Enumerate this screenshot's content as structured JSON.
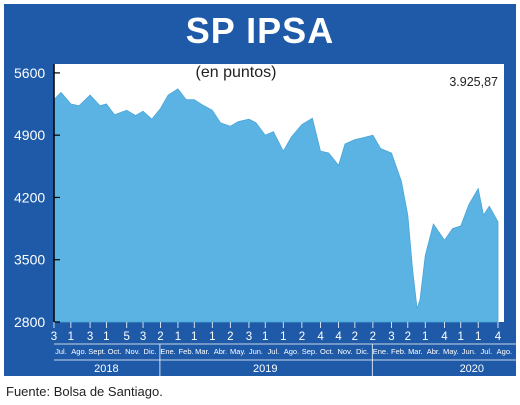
{
  "title": "SP IPSA",
  "source": "Fuente: Bolsa de Santiago.",
  "colors": {
    "frame": "#1e5aa8",
    "plot_bg": "#ffffff",
    "area": "#5ab3e2"
  },
  "chart_data": {
    "type": "area",
    "title": "SP IPSA",
    "subtitle": "(en puntos)",
    "last_value_label": "3.925,87",
    "ylim": [
      2800,
      5700
    ],
    "yticks": [
      2800,
      3500,
      4200,
      4900,
      5600
    ],
    "ytick_labels": [
      "2800",
      "3500",
      "4200",
      "4900",
      "5600"
    ],
    "grid": false,
    "x_start": "2018-07-03",
    "x_end": "2020-08-04",
    "x": [
      "2018-07-03",
      "2018-07-15",
      "2018-08-01",
      "2018-08-15",
      "2018-09-03",
      "2018-09-20",
      "2018-10-01",
      "2018-10-15",
      "2018-11-05",
      "2018-11-20",
      "2018-12-03",
      "2018-12-18",
      "2019-01-02",
      "2019-01-15",
      "2019-02-01",
      "2019-02-15",
      "2019-03-01",
      "2019-03-15",
      "2019-04-01",
      "2019-04-15",
      "2019-05-02",
      "2019-05-15",
      "2019-06-03",
      "2019-06-15",
      "2019-07-01",
      "2019-07-15",
      "2019-08-01",
      "2019-08-15",
      "2019-09-02",
      "2019-09-20",
      "2019-10-04",
      "2019-10-18",
      "2019-11-04",
      "2019-11-15",
      "2019-12-02",
      "2019-12-16",
      "2020-01-02",
      "2020-01-15",
      "2020-02-03",
      "2020-02-20",
      "2020-03-02",
      "2020-03-10",
      "2020-03-18",
      "2020-03-23",
      "2020-04-01",
      "2020-04-15",
      "2020-05-04",
      "2020-05-18",
      "2020-06-01",
      "2020-06-15",
      "2020-07-01",
      "2020-07-10",
      "2020-07-20",
      "2020-08-04"
    ],
    "y": [
      5300,
      5380,
      5250,
      5230,
      5350,
      5230,
      5250,
      5130,
      5180,
      5120,
      5170,
      5080,
      5200,
      5350,
      5420,
      5300,
      5300,
      5240,
      5180,
      5040,
      5000,
      5050,
      5080,
      5040,
      4900,
      4940,
      4720,
      4880,
      5020,
      5090,
      4720,
      4700,
      4560,
      4800,
      4850,
      4870,
      4900,
      4750,
      4700,
      4380,
      4000,
      3400,
      2950,
      3050,
      3550,
      3900,
      3720,
      3850,
      3880,
      4120,
      4300,
      4000,
      4100,
      3925.87
    ],
    "x_day_labels": [
      {
        "date": "2018-07-03",
        "label": "3"
      },
      {
        "date": "2018-08-01",
        "label": "1"
      },
      {
        "date": "2018-09-03",
        "label": "3"
      },
      {
        "date": "2018-10-01",
        "label": "1"
      },
      {
        "date": "2018-11-05",
        "label": "5"
      },
      {
        "date": "2018-12-03",
        "label": "3"
      },
      {
        "date": "2019-01-02",
        "label": "2"
      },
      {
        "date": "2019-02-01",
        "label": "1"
      },
      {
        "date": "2019-03-01",
        "label": "1"
      },
      {
        "date": "2019-04-01",
        "label": "1"
      },
      {
        "date": "2019-05-02",
        "label": "2"
      },
      {
        "date": "2019-06-03",
        "label": "3"
      },
      {
        "date": "2019-07-01",
        "label": "1"
      },
      {
        "date": "2019-08-01",
        "label": "1"
      },
      {
        "date": "2019-09-02",
        "label": "2"
      },
      {
        "date": "2019-10-04",
        "label": "4"
      },
      {
        "date": "2019-11-04",
        "label": "4"
      },
      {
        "date": "2019-12-02",
        "label": "2"
      },
      {
        "date": "2020-01-02",
        "label": "2"
      },
      {
        "date": "2020-02-03",
        "label": "3"
      },
      {
        "date": "2020-03-02",
        "label": "2"
      },
      {
        "date": "2020-04-01",
        "label": "1"
      },
      {
        "date": "2020-05-04",
        "label": "4"
      },
      {
        "date": "2020-06-01",
        "label": "1"
      },
      {
        "date": "2020-07-01",
        "label": "1"
      },
      {
        "date": "2020-08-04",
        "label": "4"
      }
    ],
    "x_month_labels": [
      {
        "date": "2018-07-15",
        "label": "Jul."
      },
      {
        "date": "2018-08-15",
        "label": "Ago."
      },
      {
        "date": "2018-09-15",
        "label": "Sept."
      },
      {
        "date": "2018-10-15",
        "label": "Oct."
      },
      {
        "date": "2018-11-15",
        "label": "Nov."
      },
      {
        "date": "2018-12-15",
        "label": "Dic."
      },
      {
        "date": "2019-01-15",
        "label": "Ene."
      },
      {
        "date": "2019-02-15",
        "label": "Feb."
      },
      {
        "date": "2019-03-15",
        "label": "Mar."
      },
      {
        "date": "2019-04-15",
        "label": "Abr."
      },
      {
        "date": "2019-05-15",
        "label": "May."
      },
      {
        "date": "2019-06-15",
        "label": "Jun."
      },
      {
        "date": "2019-07-15",
        "label": "Jul."
      },
      {
        "date": "2019-08-15",
        "label": "Ago."
      },
      {
        "date": "2019-09-15",
        "label": "Sep."
      },
      {
        "date": "2019-10-15",
        "label": "Oct."
      },
      {
        "date": "2019-11-15",
        "label": "Nov."
      },
      {
        "date": "2019-12-15",
        "label": "Dic."
      },
      {
        "date": "2020-01-15",
        "label": "Ene."
      },
      {
        "date": "2020-02-15",
        "label": "Feb."
      },
      {
        "date": "2020-03-15",
        "label": "Mar."
      },
      {
        "date": "2020-04-15",
        "label": "Abr."
      },
      {
        "date": "2020-05-15",
        "label": "May."
      },
      {
        "date": "2020-06-15",
        "label": "Jun."
      },
      {
        "date": "2020-07-15",
        "label": "Jul."
      },
      {
        "date": "2020-08-15",
        "label": "Ago."
      }
    ],
    "x_year_labels": [
      {
        "date": "2018-10-01",
        "label": "2018"
      },
      {
        "date": "2019-07-01",
        "label": "2019"
      },
      {
        "date": "2020-06-20",
        "label": "2020"
      }
    ],
    "year_boundaries": [
      "2019-01-01",
      "2020-01-01"
    ]
  }
}
